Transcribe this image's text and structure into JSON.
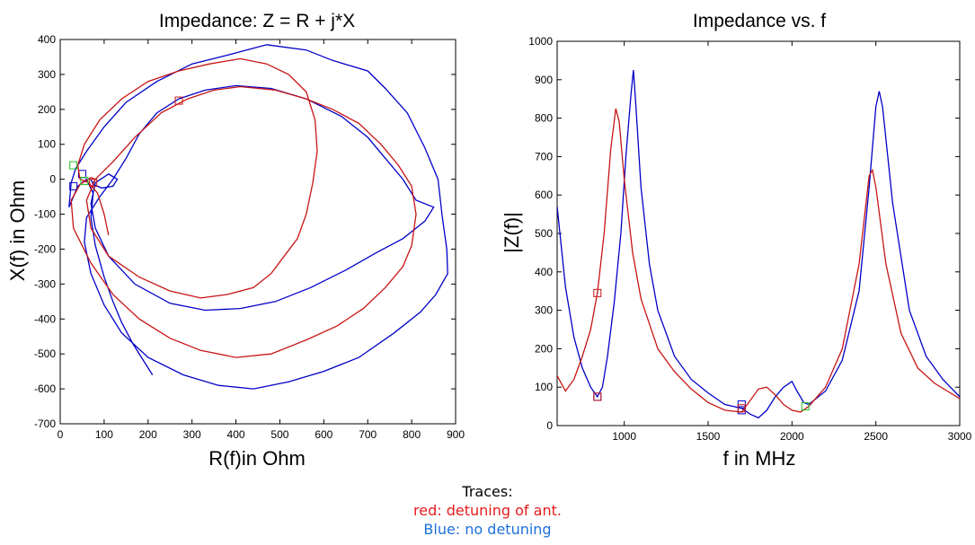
{
  "chart_data": [
    {
      "type": "line",
      "title": "Impedance: Z = R + j*X",
      "xlabel": "R(f)in Ohm",
      "ylabel": "X(f) in Ohm",
      "xlim": [
        0,
        900
      ],
      "ylim": [
        -700,
        400
      ],
      "xticks": [
        0,
        100,
        200,
        300,
        400,
        500,
        600,
        700,
        800,
        900
      ],
      "yticks": [
        -700,
        -600,
        -500,
        -400,
        -300,
        -200,
        -100,
        0,
        100,
        200,
        300,
        400
      ],
      "grid": false,
      "series": [
        {
          "color": "#0000c8",
          "points": [
            [
              210,
              -560
            ],
            [
              190,
              -520
            ],
            [
              165,
              -470
            ],
            [
              140,
              -410
            ],
            [
              120,
              -350
            ],
            [
              100,
              -280
            ],
            [
              80,
              -190
            ],
            [
              70,
              -110
            ],
            [
              75,
              -40
            ],
            [
              60,
              0
            ],
            [
              40,
              -20
            ],
            [
              20,
              -80
            ],
            [
              25,
              -10
            ],
            [
              35,
              30
            ],
            [
              60,
              80
            ],
            [
              100,
              150
            ],
            [
              150,
              220
            ],
            [
              220,
              280
            ],
            [
              300,
              330
            ],
            [
              380,
              355
            ],
            [
              470,
              385
            ],
            [
              560,
              370
            ],
            [
              620,
              340
            ],
            [
              700,
              310
            ],
            [
              740,
              260
            ],
            [
              790,
              190
            ],
            [
              830,
              90
            ],
            [
              860,
              0
            ],
            [
              870,
              -110
            ],
            [
              880,
              -200
            ],
            [
              882,
              -270
            ],
            [
              855,
              -330
            ],
            [
              820,
              -380
            ],
            [
              760,
              -440
            ],
            [
              680,
              -510
            ],
            [
              600,
              -550
            ],
            [
              520,
              -580
            ],
            [
              440,
              -600
            ],
            [
              360,
              -590
            ],
            [
              280,
              -560
            ],
            [
              200,
              -510
            ],
            [
              140,
              -440
            ],
            [
              100,
              -360
            ],
            [
              70,
              -270
            ],
            [
              55,
              -180
            ],
            [
              60,
              -110
            ],
            [
              90,
              -50
            ],
            [
              120,
              0
            ],
            [
              150,
              60
            ],
            [
              180,
              130
            ],
            [
              220,
              190
            ],
            [
              270,
              230
            ],
            [
              330,
              255
            ],
            [
              400,
              268
            ],
            [
              480,
              260
            ],
            [
              560,
              230
            ],
            [
              640,
              180
            ],
            [
              700,
              120
            ],
            [
              740,
              60
            ],
            [
              780,
              0
            ],
            [
              810,
              -60
            ],
            [
              850,
              -80
            ],
            [
              830,
              -120
            ],
            [
              780,
              -170
            ],
            [
              720,
              -210
            ],
            [
              650,
              -260
            ],
            [
              570,
              -310
            ],
            [
              490,
              -350
            ],
            [
              410,
              -370
            ],
            [
              330,
              -375
            ],
            [
              250,
              -355
            ],
            [
              170,
              -300
            ],
            [
              110,
              -220
            ],
            [
              80,
              -140
            ],
            [
              70,
              -70
            ],
            [
              80,
              -10
            ],
            [
              110,
              15
            ],
            [
              130,
              0
            ],
            [
              120,
              -20
            ],
            [
              95,
              -25
            ],
            [
              75,
              -15
            ],
            [
              70,
              0
            ]
          ],
          "markers": [
            [
              50,
              15
            ],
            [
              30,
              -20
            ]
          ]
        },
        {
          "color": "#c81414",
          "points": [
            [
              110,
              -160
            ],
            [
              100,
              -100
            ],
            [
              85,
              -40
            ],
            [
              65,
              -10
            ],
            [
              45,
              0
            ],
            [
              40,
              40
            ],
            [
              55,
              100
            ],
            [
              90,
              170
            ],
            [
              140,
              230
            ],
            [
              200,
              280
            ],
            [
              270,
              310
            ],
            [
              340,
              330
            ],
            [
              410,
              345
            ],
            [
              470,
              330
            ],
            [
              520,
              300
            ],
            [
              560,
              250
            ],
            [
              580,
              170
            ],
            [
              585,
              80
            ],
            [
              575,
              -10
            ],
            [
              560,
              -100
            ],
            [
              540,
              -170
            ],
            [
              510,
              -220
            ],
            [
              480,
              -270
            ],
            [
              440,
              -310
            ],
            [
              380,
              -330
            ],
            [
              320,
              -340
            ],
            [
              250,
              -320
            ],
            [
              180,
              -280
            ],
            [
              110,
              -220
            ],
            [
              70,
              -140
            ],
            [
              60,
              -60
            ],
            [
              80,
              0
            ],
            [
              120,
              50
            ],
            [
              170,
              120
            ],
            [
              230,
              190
            ],
            [
              290,
              230
            ],
            [
              350,
              255
            ],
            [
              410,
              265
            ],
            [
              490,
              255
            ],
            [
              560,
              230
            ],
            [
              620,
              200
            ],
            [
              680,
              160
            ],
            [
              730,
              100
            ],
            [
              770,
              40
            ],
            [
              800,
              -20
            ],
            [
              810,
              -100
            ],
            [
              800,
              -190
            ],
            [
              780,
              -250
            ],
            [
              740,
              -310
            ],
            [
              690,
              -370
            ],
            [
              630,
              -420
            ],
            [
              560,
              -460
            ],
            [
              480,
              -500
            ],
            [
              400,
              -510
            ],
            [
              320,
              -490
            ],
            [
              250,
              -455
            ],
            [
              180,
              -400
            ],
            [
              120,
              -330
            ],
            [
              70,
              -240
            ],
            [
              30,
              -140
            ],
            [
              25,
              -60
            ],
            [
              45,
              -15
            ],
            [
              70,
              5
            ],
            [
              80,
              0
            ],
            [
              75,
              -10
            ]
          ],
          "markers": [
            [
              270,
              225
            ],
            [
              75,
              -10
            ]
          ]
        }
      ],
      "green_markers": [
        [
          30,
          40
        ],
        [
          55,
          -5
        ]
      ]
    },
    {
      "type": "line",
      "title": "Impedance vs. f",
      "xlabel": "f in MHz",
      "ylabel": "|Z(f)|",
      "xlim": [
        600,
        3000
      ],
      "ylim": [
        0,
        1000
      ],
      "xticks": [
        1000,
        1500,
        2000,
        2500,
        3000
      ],
      "yticks": [
        0,
        100,
        200,
        300,
        400,
        500,
        600,
        700,
        800,
        900,
        1000
      ],
      "grid": false,
      "series": [
        {
          "color": "#0000c8",
          "points": [
            [
              600,
              570
            ],
            [
              650,
              360
            ],
            [
              700,
              230
            ],
            [
              750,
              150
            ],
            [
              800,
              100
            ],
            [
              840,
              75
            ],
            [
              870,
              100
            ],
            [
              900,
              180
            ],
            [
              940,
              320
            ],
            [
              980,
              500
            ],
            [
              1010,
              700
            ],
            [
              1040,
              860
            ],
            [
              1055,
              925
            ],
            [
              1070,
              830
            ],
            [
              1100,
              620
            ],
            [
              1150,
              420
            ],
            [
              1200,
              300
            ],
            [
              1300,
              180
            ],
            [
              1400,
              120
            ],
            [
              1500,
              85
            ],
            [
              1600,
              55
            ],
            [
              1700,
              45
            ],
            [
              1750,
              30
            ],
            [
              1800,
              20
            ],
            [
              1850,
              40
            ],
            [
              1900,
              75
            ],
            [
              1950,
              100
            ],
            [
              2000,
              115
            ],
            [
              2030,
              90
            ],
            [
              2070,
              60
            ],
            [
              2100,
              55
            ],
            [
              2200,
              90
            ],
            [
              2300,
              170
            ],
            [
              2400,
              350
            ],
            [
              2460,
              620
            ],
            [
              2500,
              830
            ],
            [
              2520,
              870
            ],
            [
              2540,
              830
            ],
            [
              2600,
              580
            ],
            [
              2700,
              300
            ],
            [
              2800,
              180
            ],
            [
              2900,
              120
            ],
            [
              3000,
              75
            ]
          ],
          "markers": [
            [
              840,
              75
            ],
            [
              1700,
              55
            ],
            [
              1700,
              40
            ]
          ]
        },
        {
          "color": "#c81414",
          "points": [
            [
              600,
              130
            ],
            [
              650,
              90
            ],
            [
              700,
              120
            ],
            [
              750,
              180
            ],
            [
              800,
              250
            ],
            [
              840,
              345
            ],
            [
              880,
              500
            ],
            [
              920,
              720
            ],
            [
              950,
              825
            ],
            [
              970,
              790
            ],
            [
              1000,
              640
            ],
            [
              1050,
              450
            ],
            [
              1100,
              330
            ],
            [
              1200,
              200
            ],
            [
              1300,
              140
            ],
            [
              1400,
              95
            ],
            [
              1500,
              60
            ],
            [
              1600,
              40
            ],
            [
              1700,
              35
            ],
            [
              1750,
              65
            ],
            [
              1800,
              95
            ],
            [
              1850,
              100
            ],
            [
              1900,
              80
            ],
            [
              1950,
              55
            ],
            [
              2000,
              40
            ],
            [
              2050,
              35
            ],
            [
              2100,
              50
            ],
            [
              2200,
              100
            ],
            [
              2300,
              200
            ],
            [
              2400,
              420
            ],
            [
              2460,
              650
            ],
            [
              2480,
              665
            ],
            [
              2500,
              620
            ],
            [
              2560,
              420
            ],
            [
              2650,
              240
            ],
            [
              2750,
              150
            ],
            [
              2850,
              110
            ],
            [
              3000,
              70
            ]
          ],
          "markers": [
            [
              840,
              345
            ],
            [
              840,
              75
            ],
            [
              1700,
              45
            ]
          ]
        }
      ],
      "green_markers": [
        [
          2080,
          50
        ]
      ]
    }
  ],
  "caption": {
    "heading": "Traces:",
    "red": "red:  detuning of ant.",
    "blue": "Blue: no detuning",
    "red_color": "#e41c1c",
    "blue_color": "#1c6fd8"
  }
}
